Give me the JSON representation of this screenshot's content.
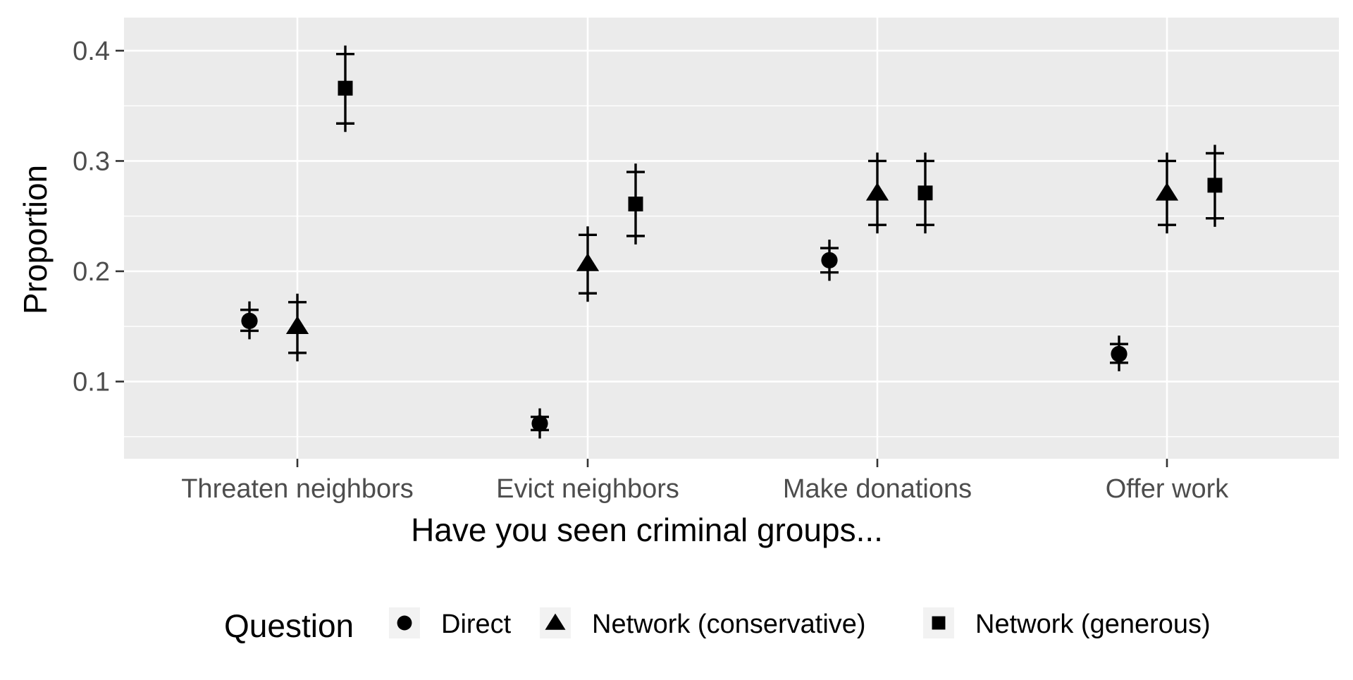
{
  "chart_data": {
    "type": "scatter",
    "subtype": "point-errorbar",
    "categories": [
      "Threaten neighbors",
      "Evict neighbors",
      "Make donations",
      "Offer work"
    ],
    "xlabel": "Have you seen criminal groups...",
    "ylabel": "Proportion",
    "ylim": [
      0.03,
      0.43
    ],
    "yticks": [
      0.1,
      0.2,
      0.3,
      0.4
    ],
    "ytick_labels": [
      "0.1",
      "0.2",
      "0.3",
      "0.4"
    ],
    "grid": true,
    "legend": {
      "title": "Question",
      "position": "bottom"
    },
    "series": [
      {
        "name": "Direct",
        "shape": "circle",
        "values": [
          0.155,
          0.062,
          0.21,
          0.125
        ],
        "lower": [
          0.146,
          0.056,
          0.199,
          0.117
        ],
        "upper": [
          0.165,
          0.068,
          0.221,
          0.134
        ]
      },
      {
        "name": "Network (conservative)",
        "shape": "triangle",
        "values": [
          0.15,
          0.207,
          0.271,
          0.271
        ],
        "lower": [
          0.126,
          0.18,
          0.242,
          0.242
        ],
        "upper": [
          0.172,
          0.233,
          0.3,
          0.3
        ]
      },
      {
        "name": "Network (generous)",
        "shape": "square",
        "values": [
          0.366,
          0.261,
          0.271,
          0.278
        ],
        "lower": [
          0.334,
          0.232,
          0.242,
          0.248
        ],
        "upper": [
          0.397,
          0.29,
          0.3,
          0.307
        ]
      }
    ],
    "colors": {
      "panel": "#ebebeb",
      "grid": "#ffffff",
      "marks": "#000000",
      "tick_text": "#4d4d4d"
    }
  }
}
